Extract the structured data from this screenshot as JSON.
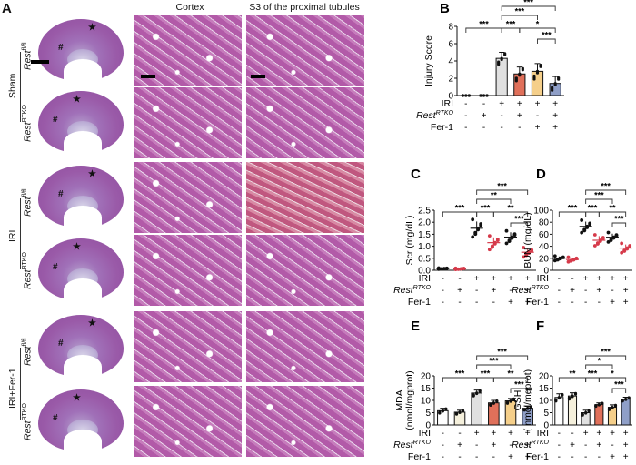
{
  "figure": {
    "panel_A": {
      "letter": "A",
      "column_headers": [
        "Cortex",
        "S3 of the proximal tubules"
      ],
      "groups": [
        {
          "label": "Sham",
          "rows": [
            {
              "genotype": "Rest",
              "sup": "fl/fl"
            },
            {
              "genotype": "Rest",
              "sup": "RTKO"
            }
          ]
        },
        {
          "label": "IRI",
          "rows": [
            {
              "genotype": "Rest",
              "sup": "fl/fl"
            },
            {
              "genotype": "Rest",
              "sup": "RTKO"
            }
          ]
        },
        {
          "label": "IRI+Fer-1",
          "rows": [
            {
              "genotype": "Rest",
              "sup": "fl/fl"
            },
            {
              "genotype": "Rest",
              "sup": "RTKO"
            }
          ]
        }
      ],
      "markers": {
        "star": "★",
        "hash": "#"
      }
    },
    "conditions": {
      "row_labels": [
        "IRI",
        "Rest",
        "Fer-1"
      ],
      "row_label_sup": "RTKO",
      "IRI": [
        "-",
        "-",
        "+",
        "+",
        "+",
        "+"
      ],
      "RestRTKO": [
        "-",
        "+",
        "-",
        "+",
        "-",
        "+"
      ],
      "Fer1": [
        "-",
        "-",
        "-",
        "-",
        "+",
        "+"
      ]
    },
    "colors": {
      "g1": "#ffffff",
      "g2": "#f5f0dc",
      "g3": "#e0e0e0",
      "g4": "#e0705a",
      "g5": "#f5cf8a",
      "g6": "#8f9fc8",
      "black_dot": "#111111",
      "red_dot": "#d63a4a"
    }
  },
  "chart_data": [
    {
      "panel": "B",
      "type": "bar",
      "title": "",
      "ylabel": "Injury Score",
      "ylim": [
        0,
        8
      ],
      "yticks": [
        0,
        2,
        4,
        6,
        8
      ],
      "categories": [
        "Rest fl/fl Sham",
        "Rest RTKO Sham",
        "Rest fl/fl IRI",
        "Rest RTKO IRI",
        "Rest fl/fl IRI+Fer-1",
        "Rest RTKO IRI+Fer-1"
      ],
      "values": [
        0,
        0,
        4.3,
        2.5,
        2.8,
        1.4
      ],
      "errors": [
        0,
        0,
        0.7,
        0.8,
        0.9,
        0.8
      ],
      "significance": [
        {
          "from": 0,
          "to": 2,
          "label": "***"
        },
        {
          "from": 2,
          "to": 3,
          "label": "***"
        },
        {
          "from": 3,
          "to": 5,
          "label": "*"
        },
        {
          "from": 2,
          "to": 5,
          "label": "***"
        },
        {
          "from": 2,
          "to": 4,
          "label": "***"
        },
        {
          "from": 4,
          "to": 5,
          "label": "***"
        }
      ]
    },
    {
      "panel": "C",
      "type": "scatter",
      "ylabel": "Scr (mg/dL)",
      "ylim": [
        0,
        2.5
      ],
      "yticks": [
        "0.0",
        "0.5",
        "1.0",
        "1.5",
        "2.0",
        "2.5"
      ],
      "categories": [
        "1",
        "2",
        "3",
        "4",
        "5",
        "6"
      ],
      "means": [
        0.07,
        0.06,
        1.75,
        1.15,
        1.38,
        0.75
      ],
      "errors": [
        0.02,
        0.02,
        0.28,
        0.22,
        0.2,
        0.15
      ],
      "significance": [
        {
          "from": 0,
          "to": 2,
          "label": "***"
        },
        {
          "from": 2,
          "to": 3,
          "label": "***"
        },
        {
          "from": 3,
          "to": 5,
          "label": "**"
        },
        {
          "from": 2,
          "to": 5,
          "label": "***"
        },
        {
          "from": 2,
          "to": 4,
          "label": "**"
        },
        {
          "from": 4,
          "to": 5,
          "label": "***"
        }
      ]
    },
    {
      "panel": "D",
      "type": "scatter",
      "ylabel": "BUN (mg/dL)",
      "ylim": [
        0,
        100
      ],
      "yticks": [
        "0",
        "20",
        "40",
        "60",
        "80",
        "100"
      ],
      "categories": [
        "1",
        "2",
        "3",
        "4",
        "5",
        "6"
      ],
      "means": [
        20,
        18,
        73,
        50,
        55,
        37
      ],
      "errors": [
        3,
        3,
        8,
        7,
        6,
        6
      ],
      "significance": [
        {
          "from": 0,
          "to": 2,
          "label": "***"
        },
        {
          "from": 2,
          "to": 3,
          "label": "***"
        },
        {
          "from": 3,
          "to": 5,
          "label": "**"
        },
        {
          "from": 2,
          "to": 5,
          "label": "***"
        },
        {
          "from": 2,
          "to": 4,
          "label": "***"
        },
        {
          "from": 4,
          "to": 5,
          "label": "***"
        }
      ]
    },
    {
      "panel": "E",
      "type": "bar",
      "ylabel": "MDA\n(nmol/mgprot)",
      "ylim": [
        0,
        20
      ],
      "yticks": [
        "0",
        "5",
        "10",
        "15",
        "20"
      ],
      "categories": [
        "1",
        "2",
        "3",
        "4",
        "5",
        "6"
      ],
      "values": [
        5.8,
        5.2,
        13.0,
        9.0,
        9.8,
        6.8
      ],
      "errors": [
        1.0,
        0.8,
        1.2,
        1.0,
        1.0,
        0.8
      ],
      "significance": [
        {
          "from": 0,
          "to": 2,
          "label": "***"
        },
        {
          "from": 2,
          "to": 3,
          "label": "***"
        },
        {
          "from": 3,
          "to": 5,
          "label": "**"
        },
        {
          "from": 2,
          "to": 5,
          "label": "***"
        },
        {
          "from": 2,
          "to": 4,
          "label": "***"
        },
        {
          "from": 4,
          "to": 5,
          "label": "***"
        }
      ]
    },
    {
      "panel": "F",
      "type": "bar",
      "ylabel": "GSH\n( nmol/mgprot)",
      "ylim": [
        0,
        20
      ],
      "yticks": [
        "0",
        "5",
        "10",
        "15",
        "20"
      ],
      "categories": [
        "1",
        "2",
        "3",
        "4",
        "5",
        "6"
      ],
      "values": [
        11.2,
        11.8,
        5.0,
        8.3,
        7.2,
        10.5
      ],
      "errors": [
        1.5,
        1.3,
        1.0,
        0.7,
        1.0,
        0.8
      ],
      "significance": [
        {
          "from": 0,
          "to": 2,
          "label": "**"
        },
        {
          "from": 2,
          "to": 3,
          "label": "***"
        },
        {
          "from": 3,
          "to": 5,
          "label": "*"
        },
        {
          "from": 2,
          "to": 5,
          "label": "***"
        },
        {
          "from": 2,
          "to": 4,
          "label": "*"
        },
        {
          "from": 4,
          "to": 5,
          "label": "***"
        }
      ]
    }
  ]
}
